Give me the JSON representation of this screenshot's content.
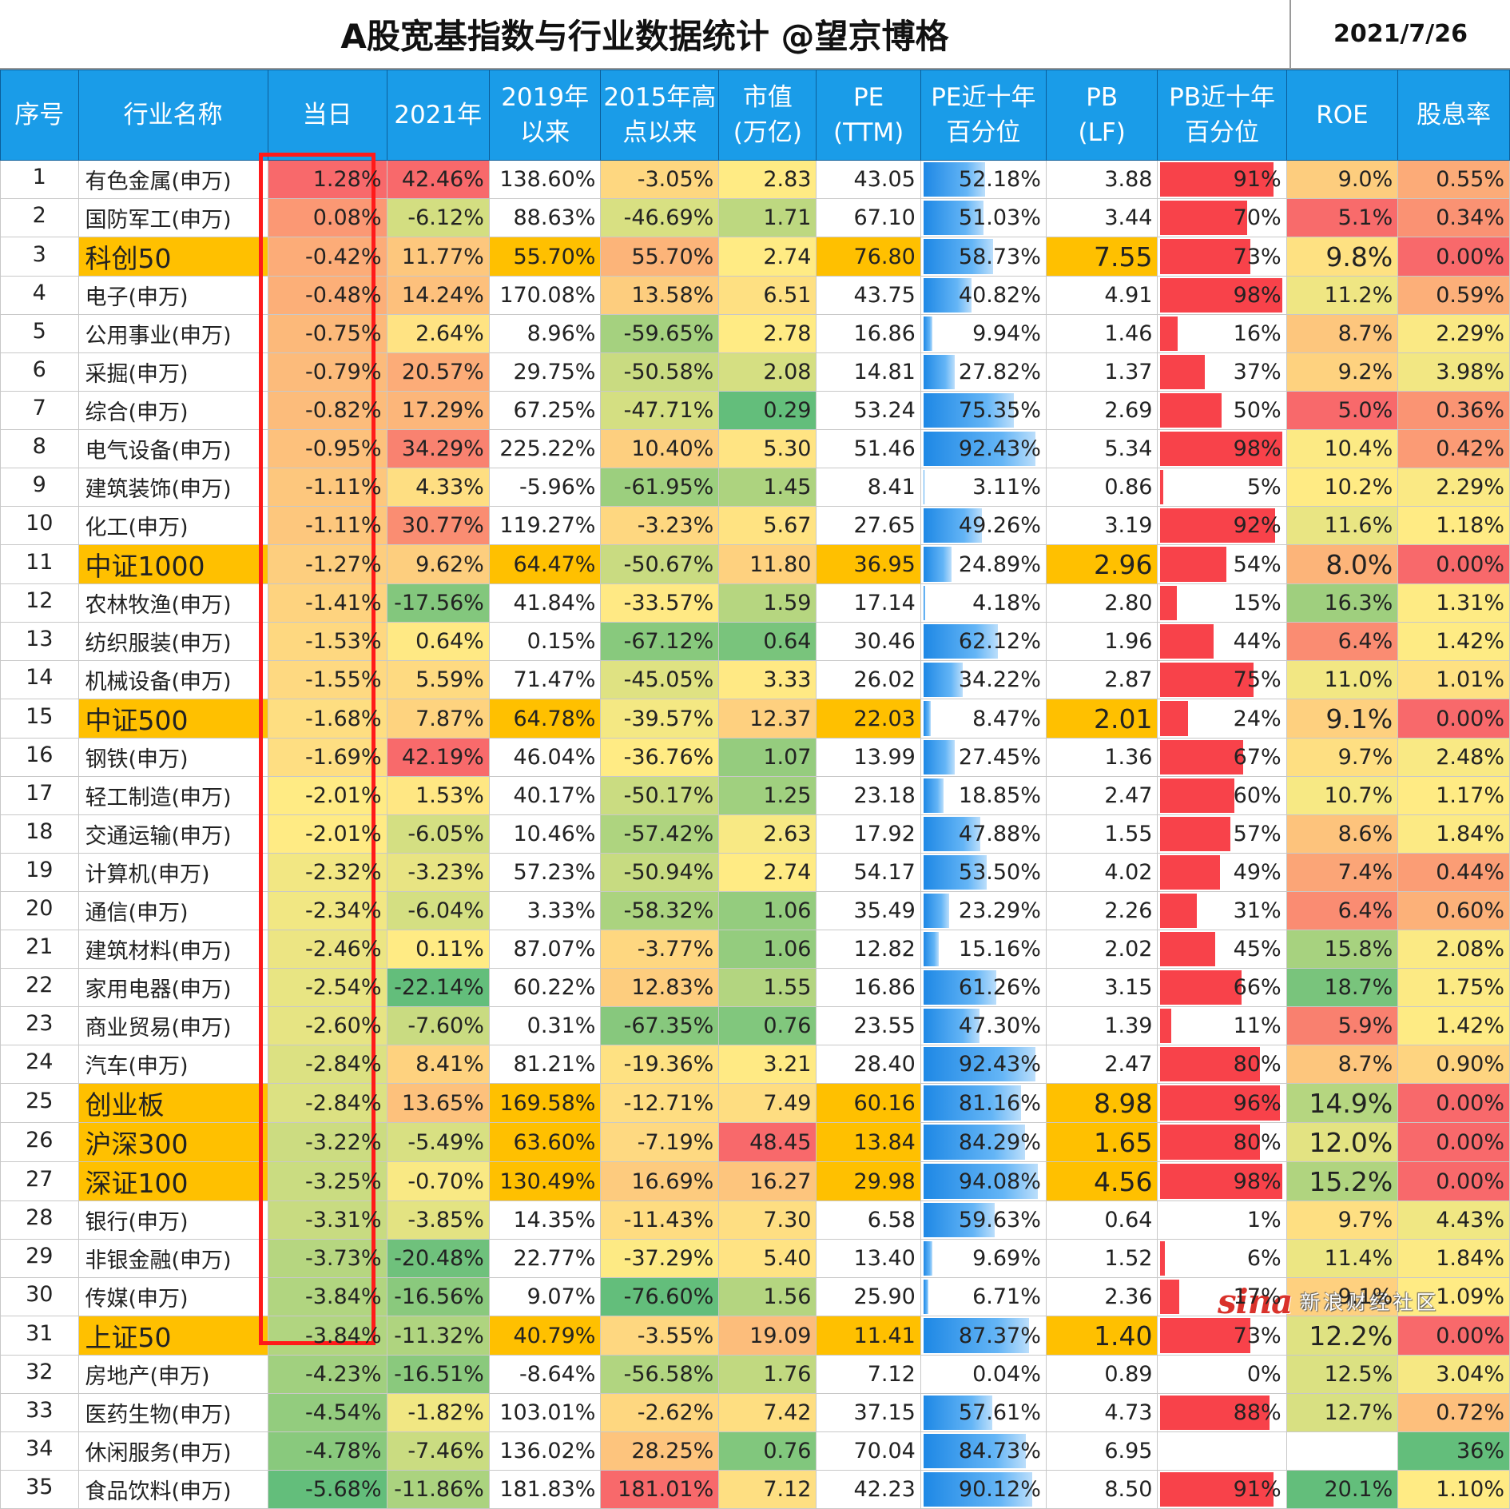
{
  "title": "A股宽基指数与行业数据统计  @望京博格",
  "date": "2021/7/26",
  "watermark": {
    "logo": "sina",
    "text": "新浪财经社区"
  },
  "columns": [
    "序号",
    "行业名称",
    "当日",
    "2021年",
    "2019年\n以来",
    "2015年高\n点以来",
    "市值\n(万亿)",
    "PE\n(TTM)",
    "PE近十年\n百分位",
    "PB\n(LF)",
    "PB近十年\n百分位",
    "ROE",
    "股息率"
  ],
  "rows": [
    {
      "idx": "1",
      "name": "有色金属(申万)",
      "day": "1.28%",
      "y2021": "42.46%",
      "since2019": "138.60%",
      "since2015": "-3.05%",
      "mcap": "2.83",
      "pe": "43.05",
      "pe_pct": "52.18%",
      "pb": "3.88",
      "pb_pct": "91%",
      "roe": "9.0%",
      "div": "0.55%"
    },
    {
      "idx": "2",
      "name": "国防军工(申万)",
      "day": "0.08%",
      "y2021": "-6.12%",
      "since2019": "88.63%",
      "since2015": "-46.69%",
      "mcap": "1.71",
      "pe": "67.10",
      "pe_pct": "51.03%",
      "pb": "3.44",
      "pb_pct": "70%",
      "roe": "5.1%",
      "div": "0.34%"
    },
    {
      "idx": "3",
      "name": "科创50",
      "day": "-0.42%",
      "y2021": "11.77%",
      "since2019": "55.70%",
      "since2015": "55.70%",
      "mcap": "2.74",
      "pe": "76.80",
      "pe_pct": "58.73%",
      "pb": "7.55",
      "pb_pct": "73%",
      "roe": "9.8%",
      "div": "0.00%",
      "is_index": true
    },
    {
      "idx": "4",
      "name": "电子(申万)",
      "day": "-0.48%",
      "y2021": "14.24%",
      "since2019": "170.08%",
      "since2015": "13.58%",
      "mcap": "6.51",
      "pe": "43.75",
      "pe_pct": "40.82%",
      "pb": "4.91",
      "pb_pct": "98%",
      "roe": "11.2%",
      "div": "0.59%"
    },
    {
      "idx": "5",
      "name": "公用事业(申万)",
      "day": "-0.75%",
      "y2021": "2.64%",
      "since2019": "8.96%",
      "since2015": "-59.65%",
      "mcap": "2.78",
      "pe": "16.86",
      "pe_pct": "9.94%",
      "pb": "1.46",
      "pb_pct": "16%",
      "roe": "8.7%",
      "div": "2.29%"
    },
    {
      "idx": "6",
      "name": "采掘(申万)",
      "day": "-0.79%",
      "y2021": "20.57%",
      "since2019": "29.75%",
      "since2015": "-50.58%",
      "mcap": "2.08",
      "pe": "14.81",
      "pe_pct": "27.82%",
      "pb": "1.37",
      "pb_pct": "37%",
      "roe": "9.2%",
      "div": "3.98%"
    },
    {
      "idx": "7",
      "name": "综合(申万)",
      "day": "-0.82%",
      "y2021": "17.29%",
      "since2019": "67.25%",
      "since2015": "-47.71%",
      "mcap": "0.29",
      "pe": "53.24",
      "pe_pct": "75.35%",
      "pb": "2.69",
      "pb_pct": "50%",
      "roe": "5.0%",
      "div": "0.36%"
    },
    {
      "idx": "8",
      "name": "电气设备(申万)",
      "day": "-0.95%",
      "y2021": "34.29%",
      "since2019": "225.22%",
      "since2015": "10.40%",
      "mcap": "5.30",
      "pe": "51.46",
      "pe_pct": "92.43%",
      "pb": "5.34",
      "pb_pct": "98%",
      "roe": "10.4%",
      "div": "0.42%"
    },
    {
      "idx": "9",
      "name": "建筑装饰(申万)",
      "day": "-1.11%",
      "y2021": "4.33%",
      "since2019": "-5.96%",
      "since2015": "-61.95%",
      "mcap": "1.45",
      "pe": "8.41",
      "pe_pct": "3.11%",
      "pb": "0.86",
      "pb_pct": "5%",
      "roe": "10.2%",
      "div": "2.29%"
    },
    {
      "idx": "10",
      "name": "化工(申万)",
      "day": "-1.11%",
      "y2021": "30.77%",
      "since2019": "119.27%",
      "since2015": "-3.23%",
      "mcap": "5.67",
      "pe": "27.65",
      "pe_pct": "49.26%",
      "pb": "3.19",
      "pb_pct": "92%",
      "roe": "11.6%",
      "div": "1.18%"
    },
    {
      "idx": "11",
      "name": "中证1000",
      "day": "-1.27%",
      "y2021": "9.62%",
      "since2019": "64.47%",
      "since2015": "-50.67%",
      "mcap": "11.80",
      "pe": "36.95",
      "pe_pct": "24.89%",
      "pb": "2.96",
      "pb_pct": "54%",
      "roe": "8.0%",
      "div": "0.00%",
      "is_index": true
    },
    {
      "idx": "12",
      "name": "农林牧渔(申万)",
      "day": "-1.41%",
      "y2021": "-17.56%",
      "since2019": "41.84%",
      "since2015": "-33.57%",
      "mcap": "1.59",
      "pe": "17.14",
      "pe_pct": "4.18%",
      "pb": "2.80",
      "pb_pct": "15%",
      "roe": "16.3%",
      "div": "1.31%"
    },
    {
      "idx": "13",
      "name": "纺织服装(申万)",
      "day": "-1.53%",
      "y2021": "0.64%",
      "since2019": "0.15%",
      "since2015": "-67.12%",
      "mcap": "0.64",
      "pe": "30.46",
      "pe_pct": "62.12%",
      "pb": "1.96",
      "pb_pct": "44%",
      "roe": "6.4%",
      "div": "1.42%"
    },
    {
      "idx": "14",
      "name": "机械设备(申万)",
      "day": "-1.55%",
      "y2021": "5.59%",
      "since2019": "71.47%",
      "since2015": "-45.05%",
      "mcap": "3.33",
      "pe": "26.02",
      "pe_pct": "34.22%",
      "pb": "2.87",
      "pb_pct": "75%",
      "roe": "11.0%",
      "div": "1.01%"
    },
    {
      "idx": "15",
      "name": "中证500",
      "day": "-1.68%",
      "y2021": "7.87%",
      "since2019": "64.78%",
      "since2015": "-39.57%",
      "mcap": "12.37",
      "pe": "22.03",
      "pe_pct": "8.47%",
      "pb": "2.01",
      "pb_pct": "24%",
      "roe": "9.1%",
      "div": "0.00%",
      "is_index": true
    },
    {
      "idx": "16",
      "name": "钢铁(申万)",
      "day": "-1.69%",
      "y2021": "42.19%",
      "since2019": "46.04%",
      "since2015": "-36.76%",
      "mcap": "1.07",
      "pe": "13.99",
      "pe_pct": "27.45%",
      "pb": "1.36",
      "pb_pct": "67%",
      "roe": "9.7%",
      "div": "2.48%"
    },
    {
      "idx": "17",
      "name": "轻工制造(申万)",
      "day": "-2.01%",
      "y2021": "1.53%",
      "since2019": "40.17%",
      "since2015": "-50.17%",
      "mcap": "1.25",
      "pe": "23.18",
      "pe_pct": "18.85%",
      "pb": "2.47",
      "pb_pct": "60%",
      "roe": "10.7%",
      "div": "1.17%"
    },
    {
      "idx": "18",
      "name": "交通运输(申万)",
      "day": "-2.01%",
      "y2021": "-6.05%",
      "since2019": "10.46%",
      "since2015": "-57.42%",
      "mcap": "2.63",
      "pe": "17.92",
      "pe_pct": "47.88%",
      "pb": "1.55",
      "pb_pct": "57%",
      "roe": "8.6%",
      "div": "1.84%"
    },
    {
      "idx": "19",
      "name": "计算机(申万)",
      "day": "-2.32%",
      "y2021": "-3.23%",
      "since2019": "57.23%",
      "since2015": "-50.94%",
      "mcap": "2.74",
      "pe": "54.17",
      "pe_pct": "53.50%",
      "pb": "4.02",
      "pb_pct": "49%",
      "roe": "7.4%",
      "div": "0.44%"
    },
    {
      "idx": "20",
      "name": "通信(申万)",
      "day": "-2.34%",
      "y2021": "-6.04%",
      "since2019": "3.33%",
      "since2015": "-58.32%",
      "mcap": "1.06",
      "pe": "35.49",
      "pe_pct": "23.29%",
      "pb": "2.26",
      "pb_pct": "31%",
      "roe": "6.4%",
      "div": "0.60%"
    },
    {
      "idx": "21",
      "name": "建筑材料(申万)",
      "day": "-2.46%",
      "y2021": "0.11%",
      "since2019": "87.07%",
      "since2015": "-3.77%",
      "mcap": "1.06",
      "pe": "12.82",
      "pe_pct": "15.16%",
      "pb": "2.02",
      "pb_pct": "45%",
      "roe": "15.8%",
      "div": "2.08%"
    },
    {
      "idx": "22",
      "name": "家用电器(申万)",
      "day": "-2.54%",
      "y2021": "-22.14%",
      "since2019": "60.22%",
      "since2015": "12.83%",
      "mcap": "1.55",
      "pe": "16.86",
      "pe_pct": "61.26%",
      "pb": "3.15",
      "pb_pct": "66%",
      "roe": "18.7%",
      "div": "1.75%"
    },
    {
      "idx": "23",
      "name": "商业贸易(申万)",
      "day": "-2.60%",
      "y2021": "-7.60%",
      "since2019": "0.31%",
      "since2015": "-67.35%",
      "mcap": "0.76",
      "pe": "23.55",
      "pe_pct": "47.30%",
      "pb": "1.39",
      "pb_pct": "11%",
      "roe": "5.9%",
      "div": "1.42%"
    },
    {
      "idx": "24",
      "name": "汽车(申万)",
      "day": "-2.84%",
      "y2021": "8.41%",
      "since2019": "81.21%",
      "since2015": "-19.36%",
      "mcap": "3.21",
      "pe": "28.40",
      "pe_pct": "92.43%",
      "pb": "2.47",
      "pb_pct": "80%",
      "roe": "8.7%",
      "div": "0.90%"
    },
    {
      "idx": "25",
      "name": "创业板",
      "day": "-2.84%",
      "y2021": "13.65%",
      "since2019": "169.58%",
      "since2015": "-12.71%",
      "mcap": "7.49",
      "pe": "60.16",
      "pe_pct": "81.16%",
      "pb": "8.98",
      "pb_pct": "96%",
      "roe": "14.9%",
      "div": "0.00%",
      "is_index": true
    },
    {
      "idx": "26",
      "name": "沪深300",
      "day": "-3.22%",
      "y2021": "-5.49%",
      "since2019": "63.60%",
      "since2015": "-7.19%",
      "mcap": "48.45",
      "pe": "13.84",
      "pe_pct": "84.29%",
      "pb": "1.65",
      "pb_pct": "80%",
      "roe": "12.0%",
      "div": "0.00%",
      "is_index": true
    },
    {
      "idx": "27",
      "name": "深证100",
      "day": "-3.25%",
      "y2021": "-0.70%",
      "since2019": "130.49%",
      "since2015": "16.69%",
      "mcap": "16.27",
      "pe": "29.98",
      "pe_pct": "94.08%",
      "pb": "4.56",
      "pb_pct": "98%",
      "roe": "15.2%",
      "div": "0.00%",
      "is_index": true
    },
    {
      "idx": "28",
      "name": "银行(申万)",
      "day": "-3.31%",
      "y2021": "-3.85%",
      "since2019": "14.35%",
      "since2015": "-11.43%",
      "mcap": "7.30",
      "pe": "6.58",
      "pe_pct": "59.63%",
      "pb": "0.64",
      "pb_pct": "1%",
      "roe": "9.7%",
      "div": "4.43%"
    },
    {
      "idx": "29",
      "name": "非银金融(申万)",
      "day": "-3.73%",
      "y2021": "-20.48%",
      "since2019": "22.77%",
      "since2015": "-37.29%",
      "mcap": "5.40",
      "pe": "13.40",
      "pe_pct": "9.69%",
      "pb": "1.52",
      "pb_pct": "6%",
      "roe": "11.4%",
      "div": "1.84%"
    },
    {
      "idx": "30",
      "name": "传媒(申万)",
      "day": "-3.84%",
      "y2021": "-16.56%",
      "since2019": "9.07%",
      "since2015": "-76.60%",
      "mcap": "1.56",
      "pe": "25.90",
      "pe_pct": "6.71%",
      "pb": "2.36",
      "pb_pct": "17%",
      "roe": "9.1%",
      "div": "1.09%"
    },
    {
      "idx": "31",
      "name": "上证50",
      "day": "-3.84%",
      "y2021": "-11.32%",
      "since2019": "40.79%",
      "since2015": "-3.55%",
      "mcap": "19.09",
      "pe": "11.41",
      "pe_pct": "87.37%",
      "pb": "1.40",
      "pb_pct": "73%",
      "roe": "12.2%",
      "div": "0.00%",
      "is_index": true
    },
    {
      "idx": "32",
      "name": "房地产(申万)",
      "day": "-4.23%",
      "y2021": "-16.51%",
      "since2019": "-8.64%",
      "since2015": "-56.58%",
      "mcap": "1.76",
      "pe": "7.12",
      "pe_pct": "0.04%",
      "pb": "0.89",
      "pb_pct": "0%",
      "roe": "12.5%",
      "div": "3.04%"
    },
    {
      "idx": "33",
      "name": "医药生物(申万)",
      "day": "-4.54%",
      "y2021": "-1.82%",
      "since2019": "103.01%",
      "since2015": "-2.62%",
      "mcap": "7.42",
      "pe": "37.15",
      "pe_pct": "57.61%",
      "pb": "4.73",
      "pb_pct": "88%",
      "roe": "12.7%",
      "div": "0.72%"
    },
    {
      "idx": "34",
      "name": "休闲服务(申万)",
      "day": "-4.78%",
      "y2021": "-7.46%",
      "since2019": "136.02%",
      "since2015": "28.25%",
      "mcap": "0.76",
      "pe": "70.04",
      "pe_pct": "84.73%",
      "pb": "6.95",
      "pb_pct": "",
      "roe": "",
      "div": "36%"
    },
    {
      "idx": "35",
      "name": "食品饮料(申万)",
      "day": "-5.68%",
      "y2021": "-11.86%",
      "since2019": "181.83%",
      "since2015": "181.01%",
      "mcap": "7.12",
      "pe": "42.23",
      "pe_pct": "90.12%",
      "pb": "8.50",
      "pb_pct": "91%",
      "roe": "20.1%",
      "div": "1.10%"
    }
  ]
}
